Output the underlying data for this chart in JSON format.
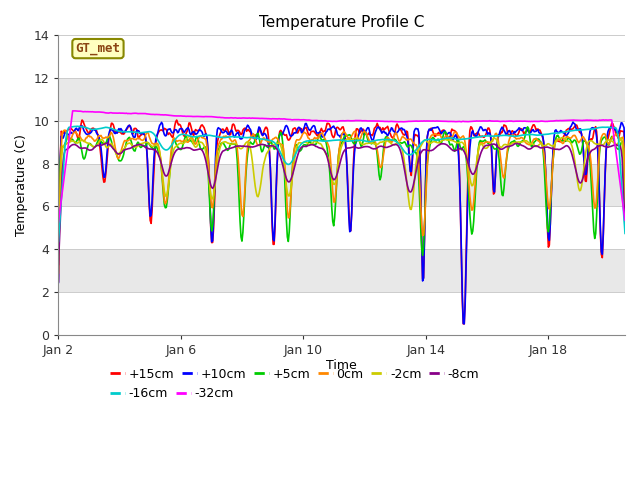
{
  "title": "Temperature Profile C",
  "xlabel": "Time",
  "ylabel": "Temperature (C)",
  "ylim": [
    0,
    14
  ],
  "xlim": [
    0,
    18.5
  ],
  "xtick_positions": [
    0,
    4,
    8,
    12,
    16
  ],
  "xtick_labels": [
    "Jan 2",
    "Jan 6",
    "Jan 10",
    "Jan 14",
    "Jan 18"
  ],
  "ytick_positions": [
    0,
    2,
    4,
    6,
    8,
    10,
    12,
    14
  ],
  "annotation_text": "GT_met",
  "series": [
    {
      "label": "+15cm",
      "color": "#ff0000"
    },
    {
      "label": "+10cm",
      "color": "#0000ff"
    },
    {
      "label": "+5cm",
      "color": "#00cc00"
    },
    {
      "label": "0cm",
      "color": "#ff8800"
    },
    {
      "label": "-2cm",
      "color": "#cccc00"
    },
    {
      "label": "-8cm",
      "color": "#880088"
    },
    {
      "label": "-16cm",
      "color": "#00cccc"
    },
    {
      "label": "-32cm",
      "color": "#ff00ff"
    }
  ],
  "title_fontsize": 11,
  "axis_label_fontsize": 9,
  "tick_fontsize": 9,
  "legend_fontsize": 9,
  "band_colors": [
    "#ffffff",
    "#e8e8e8"
  ],
  "band_edges": [
    0,
    2,
    4,
    6,
    8,
    10,
    12,
    14
  ]
}
